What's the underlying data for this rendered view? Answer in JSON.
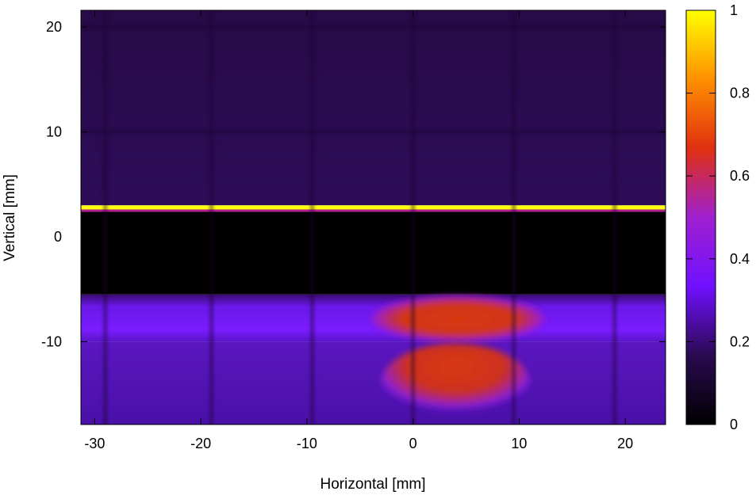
{
  "chart_data": {
    "type": "heatmap",
    "title": "",
    "xlabel": "Horizontal [mm]",
    "ylabel": "Vertical [mm]",
    "xlim": [
      -31.3,
      23.8
    ],
    "ylim": [
      -17.9,
      21.6
    ],
    "x_ticks": [
      {
        "value": -30,
        "label": "-30"
      },
      {
        "value": -20,
        "label": "-20"
      },
      {
        "value": -10,
        "label": "-10"
      },
      {
        "value": 0,
        "label": "0"
      },
      {
        "value": 10,
        "label": "10"
      },
      {
        "value": 20,
        "label": "20"
      }
    ],
    "y_ticks": [
      {
        "value": 20,
        "label": "20"
      },
      {
        "value": 10,
        "label": "10"
      },
      {
        "value": 0,
        "label": "0"
      },
      {
        "value": -10,
        "label": "-10"
      }
    ],
    "colorbar": {
      "range": [
        0,
        1
      ],
      "ticks": [
        {
          "value": 1,
          "label": "1"
        },
        {
          "value": 0.8,
          "label": "0.8"
        },
        {
          "value": 0.6,
          "label": "0.6"
        },
        {
          "value": 0.4,
          "label": "0.4"
        },
        {
          "value": 0.2,
          "label": "0.2"
        },
        {
          "value": 0,
          "label": "0"
        }
      ],
      "colormap": [
        "#000000",
        "#2a0a50",
        "#7010ff",
        "#a020d0",
        "#e03010",
        "#ff9000",
        "#ffff00"
      ]
    },
    "regions": [
      {
        "name": "upper-background",
        "x": [
          -31.3,
          23.8
        ],
        "y": [
          3.0,
          21.6
        ],
        "intensity": 0.07
      },
      {
        "name": "bright-line",
        "x": [
          -31.3,
          23.8
        ],
        "y": [
          2.6,
          3.0
        ],
        "intensity": 1.0
      },
      {
        "name": "dark-band",
        "x": [
          -31.3,
          23.8
        ],
        "y": [
          -5.5,
          2.6
        ],
        "intensity": 0.0
      },
      {
        "name": "beam-band",
        "x": [
          -31.3,
          23.8
        ],
        "y": [
          -10.0,
          -5.5
        ],
        "intensity": 0.25
      },
      {
        "name": "lower-background",
        "x": [
          -31.3,
          23.8
        ],
        "y": [
          -17.9,
          -10.0
        ],
        "intensity": 0.17
      },
      {
        "name": "beam-core-upper",
        "x": [
          -4.0,
          12.5
        ],
        "y": [
          -10.0,
          -5.6
        ],
        "intensity": 0.55
      },
      {
        "name": "beam-core-lower",
        "x": [
          -3.0,
          11.0
        ],
        "y": [
          -17.5,
          -10.2
        ],
        "intensity": 0.52
      }
    ]
  }
}
